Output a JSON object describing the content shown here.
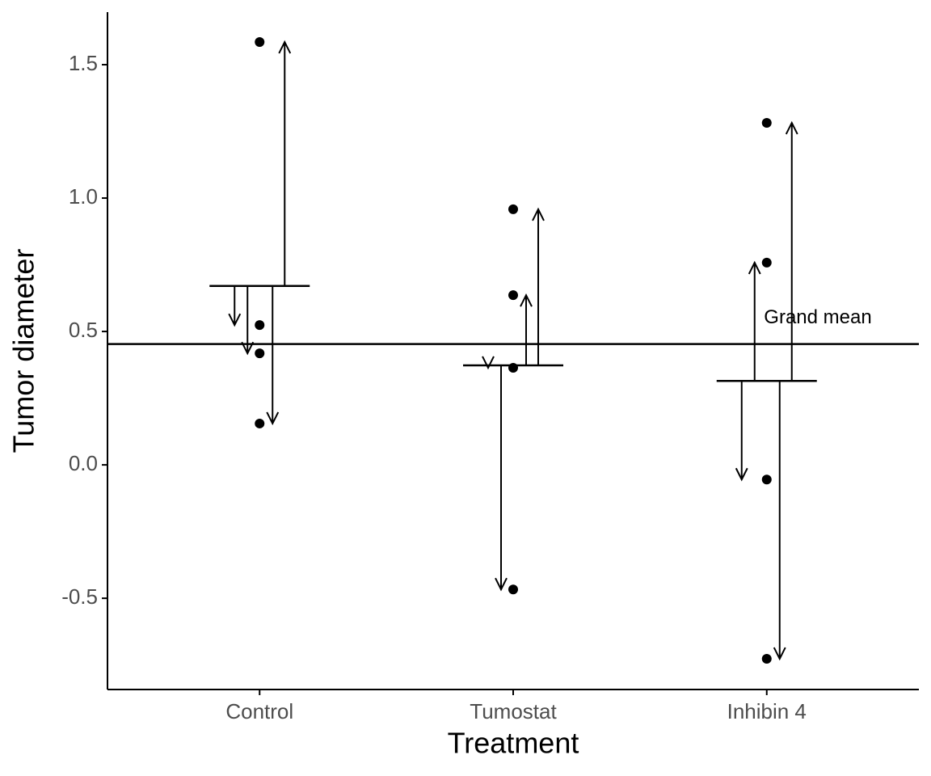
{
  "chart_data": {
    "type": "dot",
    "xlabel": "Treatment",
    "ylabel": "Tumor diameter",
    "categories": [
      "Control",
      "Tumostat",
      "Inhibin 4"
    ],
    "values": [
      [
        0.524,
        0.418,
        0.155,
        1.585
      ],
      [
        0.364,
        -0.467,
        0.636,
        0.958
      ],
      [
        -0.055,
        0.758,
        -0.727,
        1.282
      ]
    ],
    "group_means": [
      0.6705,
      0.373,
      0.3145
    ],
    "grand_mean": 0.4527,
    "grand_mean_label": "Grand mean",
    "color": "#000000",
    "ylim": [
      -0.842,
      1.697
    ],
    "yticks": [
      -0.5,
      {
        "value": 0,
        "label": "0.0"
      },
      0.5,
      {
        "value": 1,
        "label": "1.0"
      },
      1.5
    ]
  }
}
